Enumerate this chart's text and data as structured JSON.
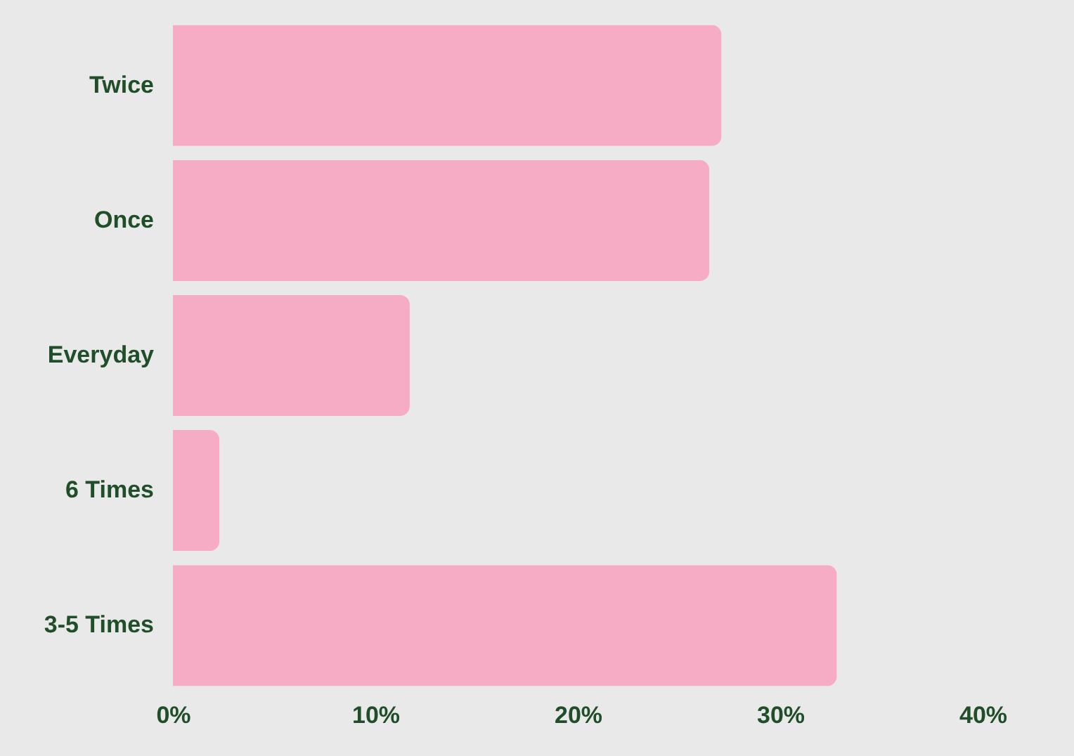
{
  "chart_data": {
    "type": "bar",
    "orientation": "horizontal",
    "categories": [
      "Twice",
      "Once",
      "Everyday",
      "6 Times",
      "3-5 Times"
    ],
    "values": [
      27.1,
      26.5,
      11.7,
      2.3,
      32.8
    ],
    "color": "#f6acc4",
    "xlim": [
      0,
      40
    ],
    "xticks": [
      {
        "value": 0,
        "label": "0%"
      },
      {
        "value": 10,
        "label": "10%"
      },
      {
        "value": 20,
        "label": "20%"
      },
      {
        "value": 30,
        "label": "30%"
      },
      {
        "value": 40,
        "label": "40%"
      }
    ]
  }
}
